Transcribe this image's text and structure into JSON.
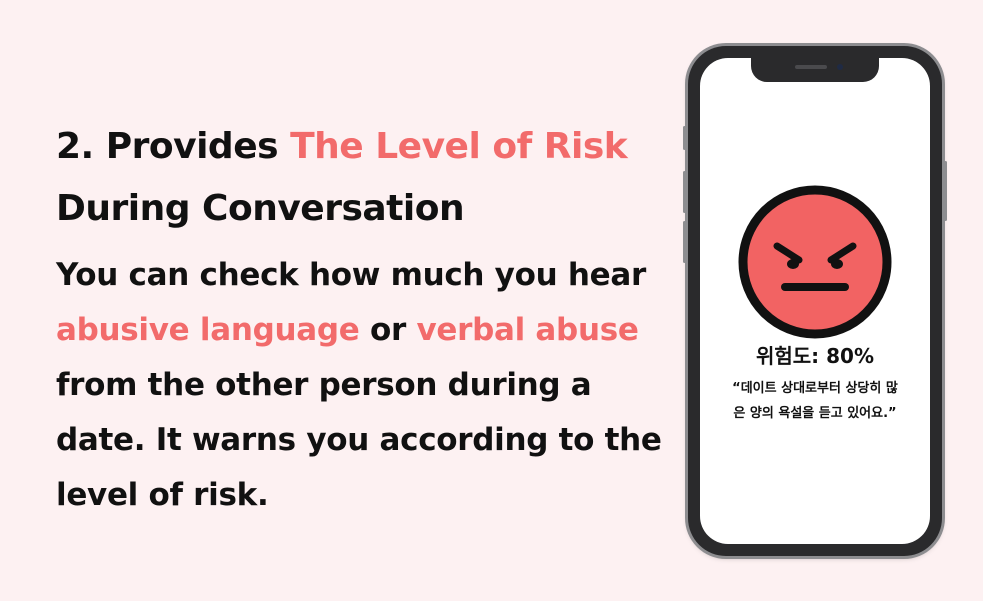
{
  "headline": {
    "part1": "2. Provides ",
    "accent": "The Level of Risk",
    "part2": "During Conversation"
  },
  "body": {
    "t1": "You can check how much you hear ",
    "a1": "abusive language",
    "t2": " or ",
    "a2": "verbal abuse",
    "t3": " from the other person during a date. It warns you according to the level of risk."
  },
  "phone": {
    "risk_label": "위험도: 80%",
    "quote": "“데이트 상대로부터 상당히 많은 양의 욕설을 듣고 있어요.”",
    "face_icon": "angry-face-icon"
  },
  "colors": {
    "background": "#fdf1f2",
    "accent": "#f26b6b",
    "face_fill": "#f26363",
    "text": "#111111"
  }
}
